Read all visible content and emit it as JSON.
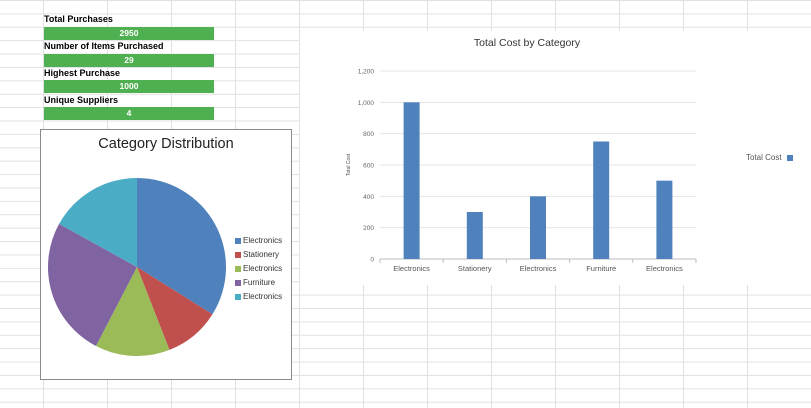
{
  "kpis": [
    {
      "label": "Total Purchases",
      "value": "2950"
    },
    {
      "label": "Number of Items Purchased",
      "value": "29"
    },
    {
      "label": "Highest Purchase",
      "value": "1000"
    },
    {
      "label": "Unique Suppliers",
      "value": "4"
    }
  ],
  "chart_data": [
    {
      "type": "pie",
      "title": "Category Distribution",
      "categories": [
        "Electronics",
        "Stationery",
        "Electronics",
        "Furniture",
        "Electronics"
      ],
      "values": [
        1000,
        300,
        400,
        750,
        500
      ],
      "colors": [
        "#4f81bd",
        "#c0504d",
        "#9bbb59",
        "#8064a2",
        "#4bacc6"
      ],
      "legend_position": "right"
    },
    {
      "type": "bar",
      "title": "Total Cost by Category",
      "categories": [
        "Electronics",
        "Stationery",
        "Electronics",
        "Furniture",
        "Electronics"
      ],
      "series": [
        {
          "name": "Total Cost",
          "values": [
            1000,
            300,
            400,
            750,
            500
          ],
          "color": "#4f81bd"
        }
      ],
      "ylabel": "Total Cost",
      "ylim": [
        0,
        1200
      ],
      "yticks": [
        "0",
        "200",
        "400",
        "600",
        "800",
        "1,000",
        "1,200"
      ],
      "grid": true,
      "legend_position": "right"
    }
  ]
}
